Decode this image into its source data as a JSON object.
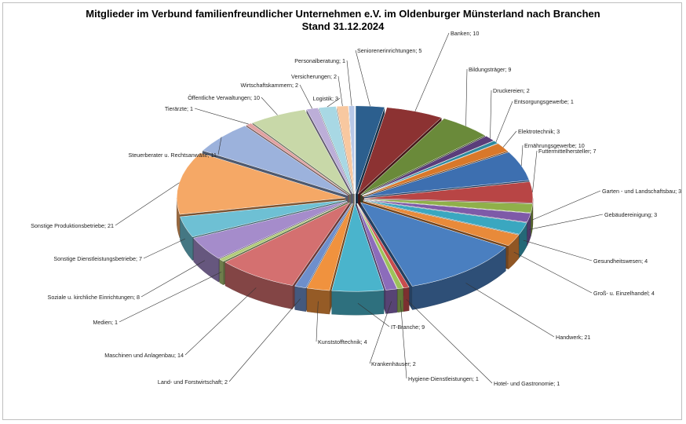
{
  "chart_data": {
    "type": "pie",
    "title": "Mitglieder im Verbund  familienfreundlicher Unternehmen e.V. im Oldenburger Münsterland nach Branchen",
    "subtitle": "Stand 31.12.2024",
    "label_format": "{name}; {value}",
    "slices": [
      {
        "name": "Seniorenerinrichtungen",
        "value": 5,
        "color": "#2c5f8e"
      },
      {
        "name": "Banken",
        "value": 10,
        "color": "#8c3232"
      },
      {
        "name": "Bildungsträger",
        "value": 9,
        "color": "#6a8a3a"
      },
      {
        "name": "Druckereien",
        "value": 2,
        "color": "#5a3d7a"
      },
      {
        "name": "Entsorgungsgewerbe",
        "value": 1,
        "color": "#2f8a9e"
      },
      {
        "name": "Elektrotechnik",
        "value": 3,
        "color": "#d9782a"
      },
      {
        "name": "Ernährungsgewerbe",
        "value": 10,
        "color": "#3d6fb0"
      },
      {
        "name": "Futtermittelhersteller",
        "value": 7,
        "color": "#b84545"
      },
      {
        "name": "Garten - und Landschaftsbau",
        "value": 3,
        "color": "#8fb04a"
      },
      {
        "name": "Gebäudereinigung",
        "value": 3,
        "color": "#7e5aa8"
      },
      {
        "name": "Gesundheitswesen",
        "value": 4,
        "color": "#3aa7c0"
      },
      {
        "name": "Groß- u. Einzelhandel",
        "value": 4,
        "color": "#e88a3a"
      },
      {
        "name": "Handwerk",
        "value": 21,
        "color": "#4a7fc0"
      },
      {
        "name": "Hotel- und Gastronomie",
        "value": 1,
        "color": "#c84d4d"
      },
      {
        "name": "Hygiene-Dienstleistungen",
        "value": 1,
        "color": "#9cc25a"
      },
      {
        "name": "Krankenhäuser",
        "value": 2,
        "color": "#8c6cbb"
      },
      {
        "name": "IT-Branche",
        "value": 9,
        "color": "#4ab4cc"
      },
      {
        "name": "Kunststofftechnik",
        "value": 4,
        "color": "#f0923e"
      },
      {
        "name": "Land- und Forstwirtschaft",
        "value": 2,
        "color": "#6e8fcc"
      },
      {
        "name": "Maschinen und Anlagenbau",
        "value": 14,
        "color": "#d47070"
      },
      {
        "name": "Medien",
        "value": 1,
        "color": "#b2cc7a"
      },
      {
        "name": "Soziale u. kirchliche Einrichtungen",
        "value": 8,
        "color": "#a58ccb"
      },
      {
        "name": "Sonstige Dienstleistungsbetriebe",
        "value": 7,
        "color": "#6ec0d4"
      },
      {
        "name": "Sonstige Produktionsbetriebe",
        "value": 21,
        "color": "#f5a866"
      },
      {
        "name": "Steuerberater u. Rechtsanwälte",
        "value": 11,
        "color": "#9cb2dc"
      },
      {
        "name": "Tierärzte",
        "value": 1,
        "color": "#e2a2a2"
      },
      {
        "name": "Öffentliche Verwaltungen",
        "value": 10,
        "color": "#c8d8a8"
      },
      {
        "name": "Wirtschaftskammern",
        "value": 2,
        "color": "#bcaed8"
      },
      {
        "name": "Logistik",
        "value": 3,
        "color": "#a8d8e4"
      },
      {
        "name": "Versicherungen",
        "value": 2,
        "color": "#f8c8a0"
      },
      {
        "name": "Personalberatung",
        "value": 1,
        "color": "#b8c8e8"
      }
    ]
  }
}
